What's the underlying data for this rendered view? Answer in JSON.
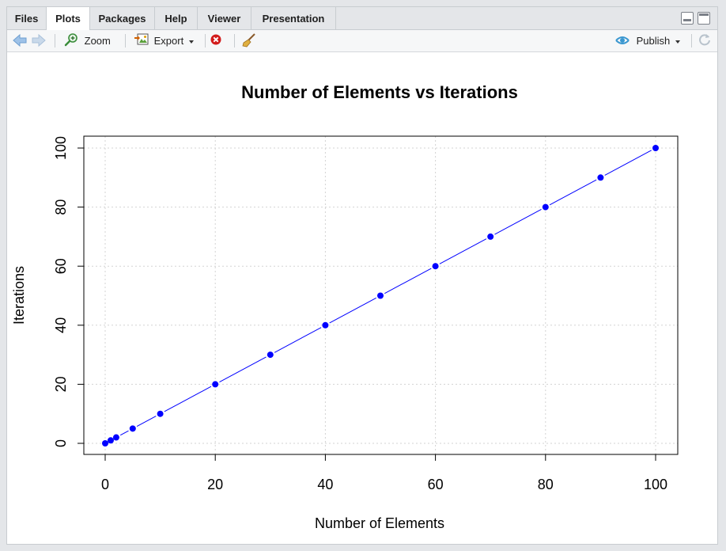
{
  "tabs": [
    {
      "label": "Files"
    },
    {
      "label": "Plots"
    },
    {
      "label": "Packages"
    },
    {
      "label": "Help"
    },
    {
      "label": "Viewer"
    },
    {
      "label": "Presentation"
    }
  ],
  "active_tab": "Plots",
  "toolbar": {
    "zoom_label": "Zoom",
    "export_label": "Export",
    "publish_label": "Publish"
  },
  "icons": [
    "back-arrow-icon",
    "forward-arrow-icon",
    "zoom-icon",
    "export-icon",
    "remove-plot-icon",
    "broom-icon",
    "publish-icon",
    "refresh-icon",
    "minimize-icon",
    "maximize-icon"
  ],
  "colors": {
    "points": "#0000ff",
    "line": "#0000ff",
    "grid": "#d3d3d3"
  },
  "chart_data": {
    "type": "scatter",
    "title": "Number of Elements vs Iterations",
    "xlabel": "Number of Elements",
    "ylabel": "Iterations",
    "x": [
      0,
      1,
      2,
      5,
      10,
      20,
      30,
      40,
      50,
      60,
      70,
      80,
      90,
      100
    ],
    "y": [
      0,
      1,
      2,
      5,
      10,
      20,
      30,
      40,
      50,
      60,
      70,
      80,
      90,
      100
    ],
    "xlim": [
      0,
      100
    ],
    "ylim": [
      0,
      100
    ],
    "xticks": [
      0,
      20,
      40,
      60,
      80,
      100
    ],
    "yticks": [
      0,
      20,
      40,
      60,
      80,
      100
    ],
    "xtick_labels": [
      "0",
      "20",
      "40",
      "60",
      "80",
      "100"
    ],
    "ytick_labels": [
      "0",
      "20",
      "40",
      "60",
      "80",
      "100"
    ],
    "line": true,
    "grid": true
  }
}
